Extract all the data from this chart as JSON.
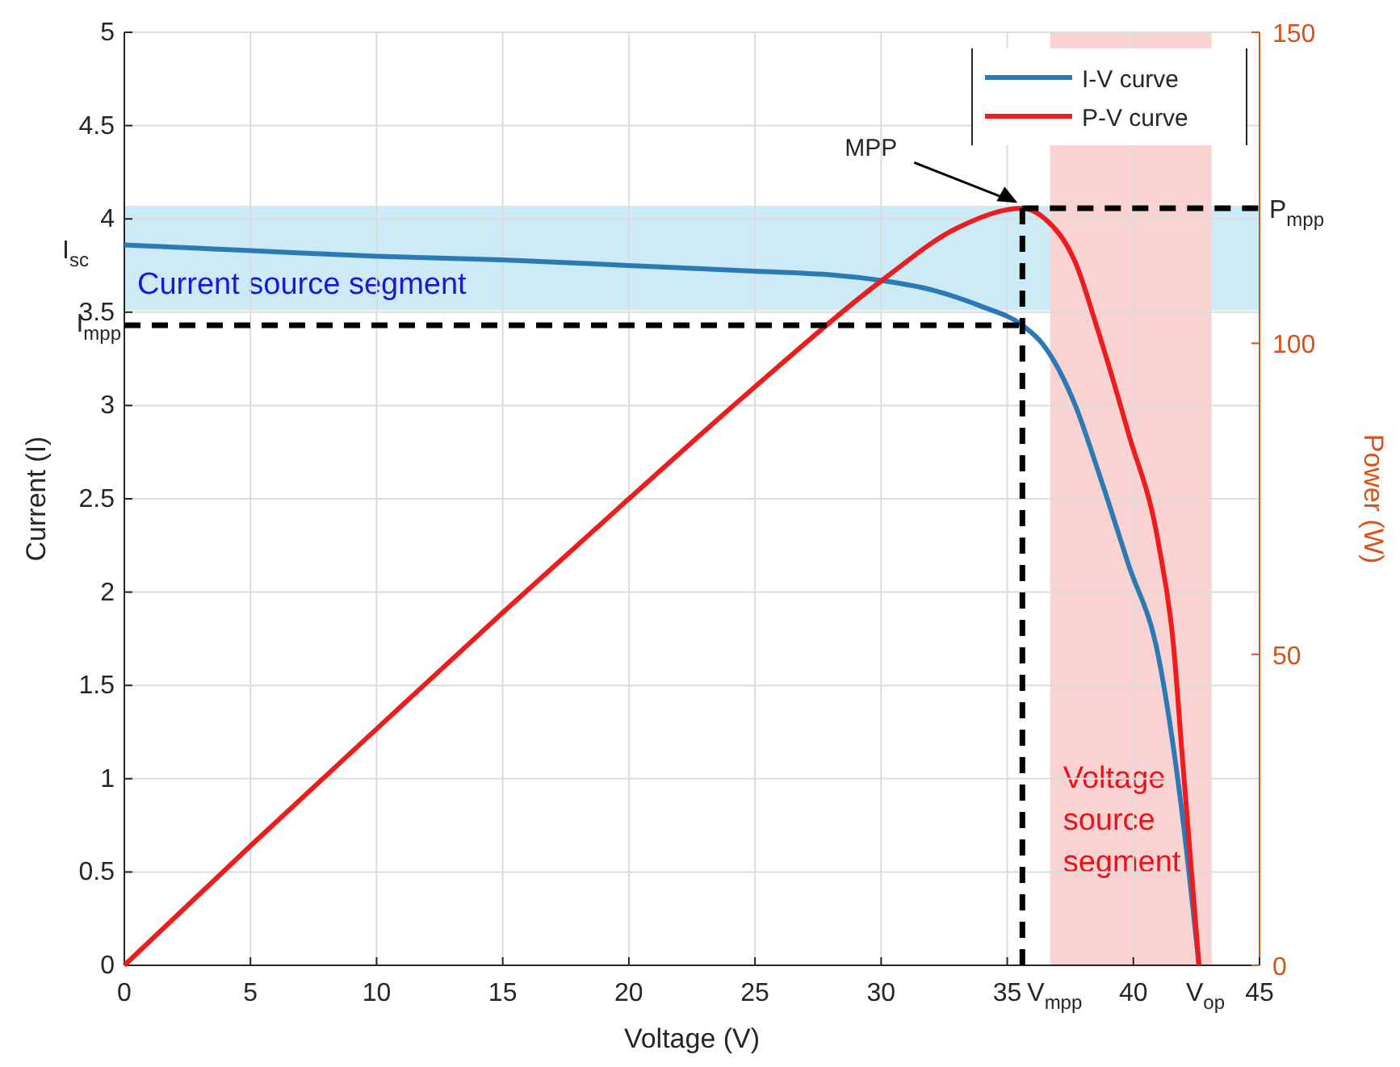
{
  "chart_data": {
    "type": "line",
    "xlabel": "Voltage (V)",
    "ylabel": "Current (I)",
    "y2label": "Power (W)",
    "xlim": [
      0,
      45
    ],
    "xticks": [
      0,
      5,
      10,
      15,
      20,
      25,
      30,
      35,
      40,
      45
    ],
    "ylim": [
      0,
      5
    ],
    "yticks": [
      0,
      0.5,
      1,
      1.5,
      2,
      2.5,
      3,
      3.5,
      4,
      4.5,
      5
    ],
    "y2lim": [
      0,
      150
    ],
    "y2ticks": [
      0,
      50,
      100,
      150
    ],
    "grid": true,
    "legend": "top right",
    "line_style": "solid",
    "marker": "none",
    "series": [
      {
        "name": "I-V curve",
        "color": "#2b79b5",
        "x": [
          0,
          5,
          10,
          15,
          20,
          25,
          28,
          30,
          32,
          34,
          35.6,
          36.4,
          37.7,
          38.6,
          39.8,
          41,
          41.9,
          42.6
        ],
        "values": [
          3.86,
          3.83,
          3.8,
          3.78,
          3.75,
          3.72,
          3.7,
          3.67,
          3.62,
          3.53,
          3.43,
          3.33,
          3.0,
          2.65,
          2.15,
          1.65,
          0.85,
          0
        ]
      },
      {
        "name": "P-V curve",
        "color": "#ee1c1c",
        "axis": "y2",
        "x": [
          0,
          5,
          10,
          15,
          20,
          25,
          30,
          33,
          35.6,
          36.5,
          37.7,
          38.6,
          39.8,
          41,
          41.6,
          41.9,
          42.6
        ],
        "values": [
          0,
          19.2,
          38,
          56.7,
          75,
          93,
          110,
          118.5,
          121.7,
          120,
          113,
          102,
          85.6,
          67.7,
          51,
          35.6,
          0
        ]
      }
    ],
    "ref_lines": [
      {
        "axis": "y",
        "value": 3.43,
        "label": "I$_{mpp}$",
        "color": "#000000",
        "line_style": "dashed"
      },
      {
        "axis": "x",
        "value": 35.6,
        "label": "V$_{mpp}$",
        "color": "#000000",
        "line_style": "dashed"
      },
      {
        "axis": "y2",
        "value": 121.7,
        "label": "P$_{mpp}$",
        "color": "#000000",
        "line_style": "dashed"
      }
    ],
    "bands": [
      {
        "axis": "y",
        "from": 3.51,
        "to": 4.07,
        "label": "Current source segment",
        "color": "#cdeaf7"
      },
      {
        "axis": "x",
        "from": 36.7,
        "to": 43.1,
        "label": "Voltage source segment",
        "color": "#f9d2d2"
      }
    ],
    "annotations": [
      {
        "text": "I$_{sc}$",
        "x": 0,
        "y": 3.86
      },
      {
        "text": "V$_{op}$",
        "x": 42.6,
        "y": 0
      },
      {
        "text": "MPP",
        "x": 35.6,
        "y": 4.06
      }
    ]
  }
}
